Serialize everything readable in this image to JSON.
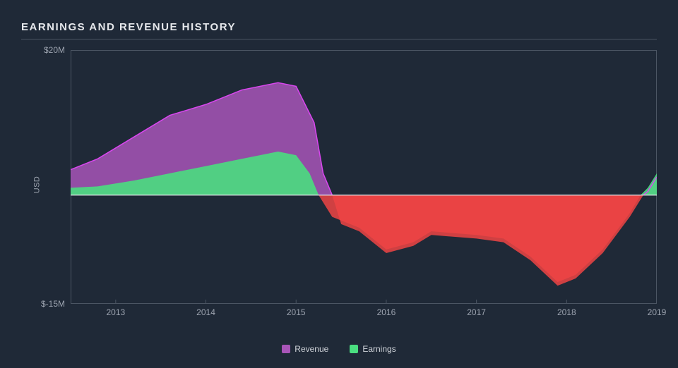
{
  "title": "EARNINGS AND REVENUE HISTORY",
  "chart": {
    "type": "area",
    "background_color": "#1f2937",
    "grid_color": "#4b5563",
    "text_color": "#9ca3af",
    "title_fontsize": 15,
    "label_fontsize": 12,
    "y_axis": {
      "title": "USD",
      "top_label": "$20M",
      "bottom_label": "$-15M",
      "min": -15,
      "max": 20,
      "zero": 0
    },
    "x_axis": {
      "min": 2012.5,
      "max": 2019.0,
      "ticks": [
        2013,
        2014,
        2015,
        2016,
        2017,
        2018,
        2019
      ],
      "tick_labels": [
        "2013",
        "2014",
        "2015",
        "2016",
        "2017",
        "2018",
        "2019"
      ]
    },
    "series": {
      "revenue": {
        "label": "Revenue",
        "color_pos": "#a855b8",
        "color_pos_stroke": "#d946ef",
        "color_neg": "#ef4444",
        "opacity": 0.85,
        "data": [
          {
            "x": 2012.5,
            "y": 3.5
          },
          {
            "x": 2012.8,
            "y": 5.0
          },
          {
            "x": 2013.2,
            "y": 8.0
          },
          {
            "x": 2013.6,
            "y": 11.0
          },
          {
            "x": 2014.0,
            "y": 12.5
          },
          {
            "x": 2014.4,
            "y": 14.5
          },
          {
            "x": 2014.8,
            "y": 15.5
          },
          {
            "x": 2015.0,
            "y": 15.0
          },
          {
            "x": 2015.2,
            "y": 10.0
          },
          {
            "x": 2015.3,
            "y": 3.0
          },
          {
            "x": 2015.4,
            "y": 0.0
          },
          {
            "x": 2015.5,
            "y": -4.0
          },
          {
            "x": 2015.7,
            "y": -5.0
          },
          {
            "x": 2016.0,
            "y": -8.0
          },
          {
            "x": 2016.3,
            "y": -7.0
          },
          {
            "x": 2016.5,
            "y": -5.5
          },
          {
            "x": 2017.0,
            "y": -6.0
          },
          {
            "x": 2017.3,
            "y": -6.5
          },
          {
            "x": 2017.6,
            "y": -9.0
          },
          {
            "x": 2017.9,
            "y": -12.5
          },
          {
            "x": 2018.1,
            "y": -11.5
          },
          {
            "x": 2018.4,
            "y": -8.0
          },
          {
            "x": 2018.7,
            "y": -3.0
          },
          {
            "x": 2018.85,
            "y": 0.0
          },
          {
            "x": 2018.9,
            "y": 0.5
          },
          {
            "x": 2019.0,
            "y": 2.5
          }
        ]
      },
      "earnings": {
        "label": "Earnings",
        "color_pos": "#4ade80",
        "color_neg": "#ef4444",
        "opacity": 0.9,
        "data": [
          {
            "x": 2012.5,
            "y": 1.0
          },
          {
            "x": 2012.8,
            "y": 1.2
          },
          {
            "x": 2013.2,
            "y": 2.0
          },
          {
            "x": 2013.6,
            "y": 3.0
          },
          {
            "x": 2014.0,
            "y": 4.0
          },
          {
            "x": 2014.4,
            "y": 5.0
          },
          {
            "x": 2014.8,
            "y": 6.0
          },
          {
            "x": 2015.0,
            "y": 5.5
          },
          {
            "x": 2015.15,
            "y": 3.0
          },
          {
            "x": 2015.25,
            "y": 0.0
          },
          {
            "x": 2015.4,
            "y": -3.0
          },
          {
            "x": 2015.7,
            "y": -4.5
          },
          {
            "x": 2016.0,
            "y": -7.5
          },
          {
            "x": 2016.3,
            "y": -6.5
          },
          {
            "x": 2016.5,
            "y": -5.0
          },
          {
            "x": 2017.0,
            "y": -5.5
          },
          {
            "x": 2017.3,
            "y": -6.0
          },
          {
            "x": 2017.6,
            "y": -8.5
          },
          {
            "x": 2017.9,
            "y": -12.0
          },
          {
            "x": 2018.1,
            "y": -11.0
          },
          {
            "x": 2018.4,
            "y": -7.5
          },
          {
            "x": 2018.7,
            "y": -2.5
          },
          {
            "x": 2018.82,
            "y": 0.0
          },
          {
            "x": 2018.9,
            "y": 1.0
          },
          {
            "x": 2019.0,
            "y": 3.0
          }
        ]
      }
    },
    "legend": [
      {
        "label": "Revenue",
        "color": "#a855b8"
      },
      {
        "label": "Earnings",
        "color": "#4ade80"
      }
    ]
  }
}
